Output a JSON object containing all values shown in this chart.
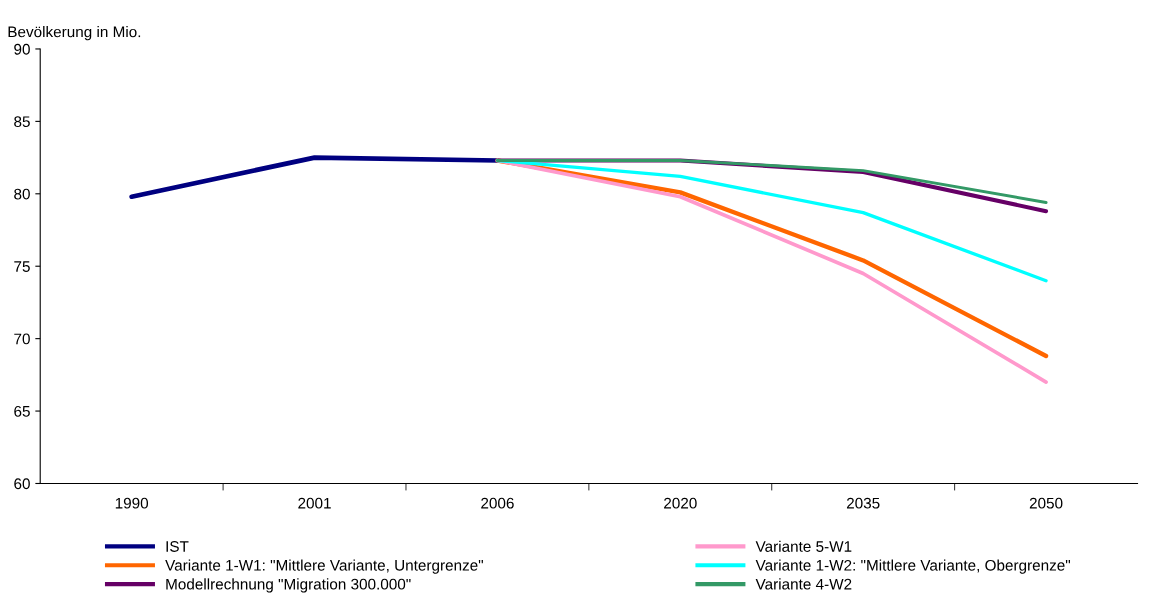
{
  "chart_data": {
    "type": "line",
    "ylabel": "Bevölkerung in Mio.",
    "categories": [
      "1990",
      "2001",
      "2006",
      "2020",
      "2035",
      "2050"
    ],
    "ylim": [
      60,
      90
    ],
    "yticks": [
      60,
      65,
      70,
      75,
      80,
      85,
      90
    ],
    "grid": false,
    "legend": "bottom",
    "marker": "none",
    "line_style": "solid",
    "series": [
      {
        "name": "IST",
        "color": "#000080",
        "values": [
          79.8,
          82.5,
          82.3,
          null,
          null,
          null
        ]
      },
      {
        "name": "Variante 1-W1: \"Mittlere Variante, Untergrenze\"",
        "color": "#ff6600",
        "values": [
          null,
          null,
          82.3,
          80.1,
          75.4,
          68.8
        ]
      },
      {
        "name": "Modellrechnung \"Migration 300.000\"",
        "color": "#660066",
        "values": [
          null,
          null,
          82.3,
          82.3,
          81.5,
          78.8
        ]
      },
      {
        "name": "Variante 5-W1",
        "color": "#ff99cc",
        "values": [
          null,
          null,
          82.3,
          79.8,
          74.5,
          67.0
        ]
      },
      {
        "name": "Variante 1-W2: \"Mittlere Variante, Obergrenze\"",
        "color": "#00ffff",
        "values": [
          null,
          null,
          82.3,
          81.2,
          78.7,
          74.0
        ]
      },
      {
        "name": "Variante 4-W2",
        "color": "#339966",
        "values": [
          null,
          null,
          82.3,
          82.3,
          81.6,
          79.4
        ]
      }
    ]
  }
}
